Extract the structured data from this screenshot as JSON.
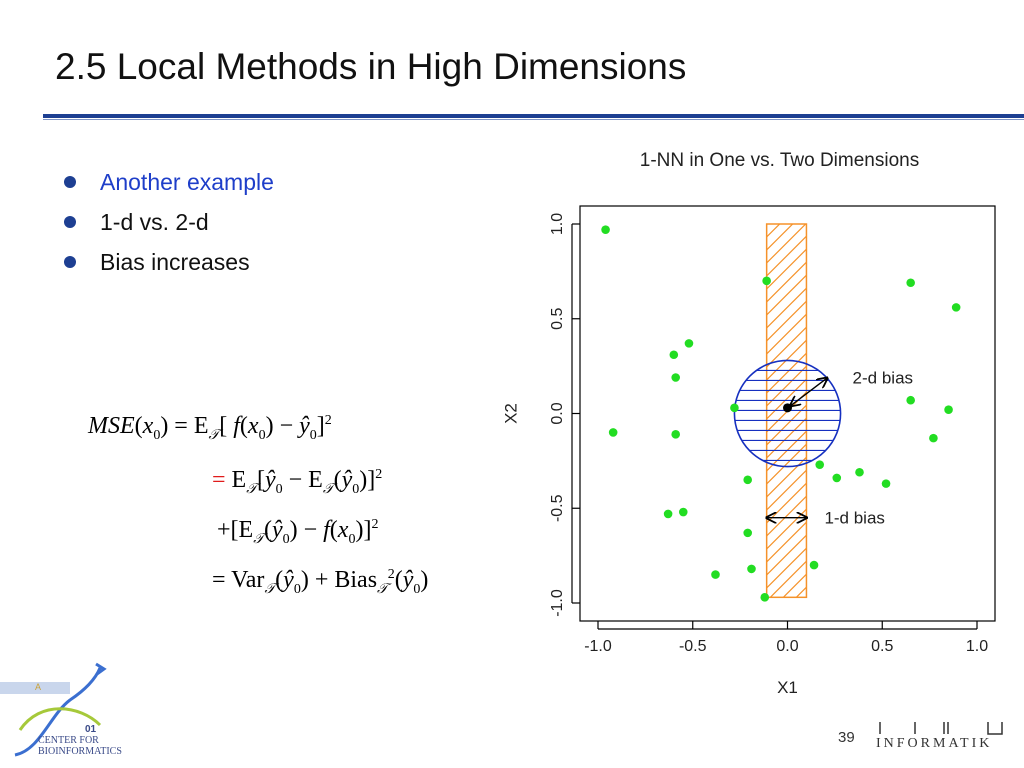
{
  "slide": {
    "title": "2.5 Local Methods in High Dimensions",
    "bullets": [
      "Another example",
      "1-d vs. 2-d",
      "Bias increases"
    ],
    "page_number": "39"
  },
  "equations": {
    "line1_lhs": "MSE",
    "x0": "x",
    "sub0": "0",
    "expect": "E",
    "calT": "𝒯",
    "f": "f",
    "yhat": "ŷ",
    "sq": "2",
    "var": "Var",
    "bias": "Bias"
  },
  "chart_data": {
    "type": "scatter",
    "title": "1-NN in One vs. Two Dimensions",
    "xlabel": "X1",
    "ylabel": "X2",
    "xlim": [
      -1.0,
      1.0
    ],
    "ylim": [
      -1.0,
      1.0
    ],
    "x_ticks": [
      "-1.0",
      "-0.5",
      "0.0",
      "0.5",
      "1.0"
    ],
    "y_ticks": [
      "-1.0",
      "-0.5",
      "0.0",
      "0.5",
      "1.0"
    ],
    "points": [
      {
        "x": -0.96,
        "y": 0.97
      },
      {
        "x": -0.11,
        "y": 0.7
      },
      {
        "x": 0.65,
        "y": 0.69
      },
      {
        "x": 0.89,
        "y": 0.56
      },
      {
        "x": -0.52,
        "y": 0.37
      },
      {
        "x": -0.6,
        "y": 0.31
      },
      {
        "x": -0.59,
        "y": 0.19
      },
      {
        "x": -0.28,
        "y": 0.03
      },
      {
        "x": 0.65,
        "y": 0.07
      },
      {
        "x": 0.85,
        "y": 0.02
      },
      {
        "x": -0.92,
        "y": -0.1
      },
      {
        "x": -0.59,
        "y": -0.11
      },
      {
        "x": 0.77,
        "y": -0.13
      },
      {
        "x": 0.17,
        "y": -0.27
      },
      {
        "x": 0.38,
        "y": -0.31
      },
      {
        "x": 0.26,
        "y": -0.34
      },
      {
        "x": -0.21,
        "y": -0.35
      },
      {
        "x": 0.52,
        "y": -0.37
      },
      {
        "x": -0.55,
        "y": -0.52
      },
      {
        "x": -0.63,
        "y": -0.53
      },
      {
        "x": -0.21,
        "y": -0.63
      },
      {
        "x": -0.19,
        "y": -0.82
      },
      {
        "x": 0.14,
        "y": -0.8
      },
      {
        "x": -0.38,
        "y": -0.85
      },
      {
        "x": -0.12,
        "y": -0.97
      }
    ],
    "target": {
      "x": 0.0,
      "y": 0.03
    },
    "band_1d": {
      "xmin": -0.11,
      "xmax": 0.1,
      "ymin": -0.97,
      "ymax": 1.0
    },
    "circle_2d": {
      "cx": 0.0,
      "cy": 0.0,
      "r": 0.28
    },
    "annotations": [
      "2-d bias",
      "1-d bias"
    ],
    "grid": false,
    "colors": {
      "points": "#22dd22",
      "band": "#f5922a",
      "circle": "#1630c0",
      "axis": "#000000"
    }
  },
  "logo": {
    "left_text_line1": "CENTER FOR",
    "left_text_line2": "BIOINFORMATICS",
    "right_text": "INFORMATIK"
  }
}
